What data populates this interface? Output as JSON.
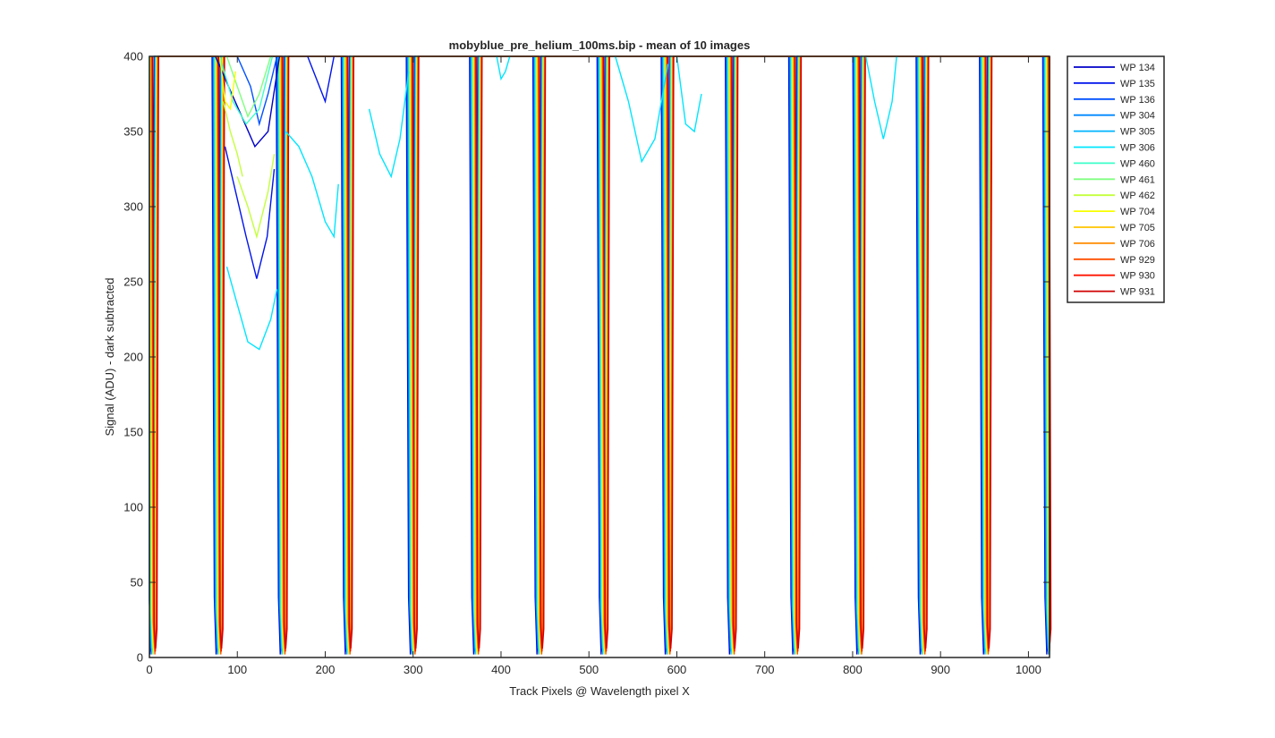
{
  "chart_data": {
    "type": "line",
    "title": "mobyblue_pre_helium_100ms.bip - mean of 10 images",
    "xlabel": "Track Pixels @ Wavelength pixel X",
    "ylabel": "Signal (ADU) - dark subtracted",
    "xlim": [
      0,
      1024
    ],
    "ylim": [
      0,
      400
    ],
    "xticks": [
      0,
      100,
      200,
      300,
      400,
      500,
      600,
      700,
      800,
      900,
      1000
    ],
    "yticks": [
      0,
      50,
      100,
      150,
      200,
      250,
      300,
      350,
      400
    ],
    "grid": false,
    "legend_position": "top-right, outside",
    "valley_centers": [
      4,
      79,
      152,
      226,
      300,
      372,
      444,
      517,
      590,
      663,
      735,
      808,
      880,
      952,
      1024
    ],
    "dip_segments": [
      {
        "series": "WP 134",
        "x": [
          75,
          90,
          105,
          120,
          135,
          148
        ],
        "y": [
          400,
          380,
          360,
          340,
          350,
          400
        ]
      },
      {
        "series": "WP 135",
        "x": [
          86,
          98,
          110,
          122,
          134,
          142
        ],
        "y": [
          340,
          310,
          280,
          252,
          280,
          325
        ]
      },
      {
        "series": "WP 135",
        "x": [
          180,
          190,
          200,
          210
        ],
        "y": [
          400,
          385,
          370,
          400
        ]
      },
      {
        "series": "WP 136",
        "x": [
          100,
          115,
          125,
          135,
          145
        ],
        "y": [
          400,
          380,
          355,
          375,
          400
        ]
      },
      {
        "series": "WP 460",
        "x": [
          80,
          95,
          110,
          125,
          140
        ],
        "y": [
          400,
          370,
          355,
          365,
          400
        ]
      },
      {
        "series": "WP 306",
        "x": [
          155,
          170,
          185,
          200,
          210,
          215
        ],
        "y": [
          350,
          340,
          320,
          290,
          280,
          315
        ]
      },
      {
        "series": "WP 306",
        "x": [
          250,
          262,
          275,
          285,
          295
        ],
        "y": [
          365,
          335,
          320,
          345,
          390
        ]
      },
      {
        "series": "WP 306",
        "x": [
          88,
          100,
          112,
          125,
          138,
          145
        ],
        "y": [
          260,
          235,
          210,
          205,
          225,
          245
        ]
      },
      {
        "series": "WP 306",
        "x": [
          395,
          400,
          405,
          410
        ],
        "y": [
          400,
          385,
          390,
          400
        ]
      },
      {
        "series": "WP 306",
        "x": [
          530,
          545,
          560,
          575,
          590
        ],
        "y": [
          400,
          370,
          330,
          345,
          395
        ]
      },
      {
        "series": "WP 306",
        "x": [
          600,
          610,
          620,
          628
        ],
        "y": [
          400,
          355,
          350,
          375
        ]
      },
      {
        "series": "WP 306",
        "x": [
          815,
          825,
          835,
          845,
          850
        ],
        "y": [
          400,
          370,
          345,
          370,
          400
        ]
      },
      {
        "series": "WP 462",
        "x": [
          84,
          92,
          100,
          106
        ],
        "y": [
          370,
          350,
          335,
          320
        ]
      },
      {
        "series": "WP 462",
        "x": [
          100,
          112,
          122,
          135,
          142
        ],
        "y": [
          320,
          300,
          280,
          310,
          335
        ]
      },
      {
        "series": "WP 461",
        "x": [
          88,
          100,
          112,
          125,
          138
        ],
        "y": [
          400,
          380,
          360,
          375,
          400
        ]
      },
      {
        "series": "WP 704",
        "x": [
          80,
          86,
          92,
          98
        ],
        "y": [
          400,
          370,
          365,
          390
        ]
      }
    ],
    "series": [
      {
        "name": "WP 134",
        "color": "#0000c8"
      },
      {
        "name": "WP 135",
        "color": "#0014ec"
      },
      {
        "name": "WP 136",
        "color": "#0050ff"
      },
      {
        "name": "WP 304",
        "color": "#0088ff"
      },
      {
        "name": "WP 305",
        "color": "#00b4ff"
      },
      {
        "name": "WP 306",
        "color": "#00e6ff"
      },
      {
        "name": "WP 460",
        "color": "#3cffc8"
      },
      {
        "name": "WP 461",
        "color": "#80ff80"
      },
      {
        "name": "WP 462",
        "color": "#c4ff3c"
      },
      {
        "name": "WP 704",
        "color": "#f8ff00"
      },
      {
        "name": "WP 705",
        "color": "#ffc400"
      },
      {
        "name": "WP 706",
        "color": "#ff8c00"
      },
      {
        "name": "WP 929",
        "color": "#ff5000"
      },
      {
        "name": "WP 930",
        "color": "#ff1400"
      },
      {
        "name": "WP 931",
        "color": "#d00000"
      }
    ]
  }
}
